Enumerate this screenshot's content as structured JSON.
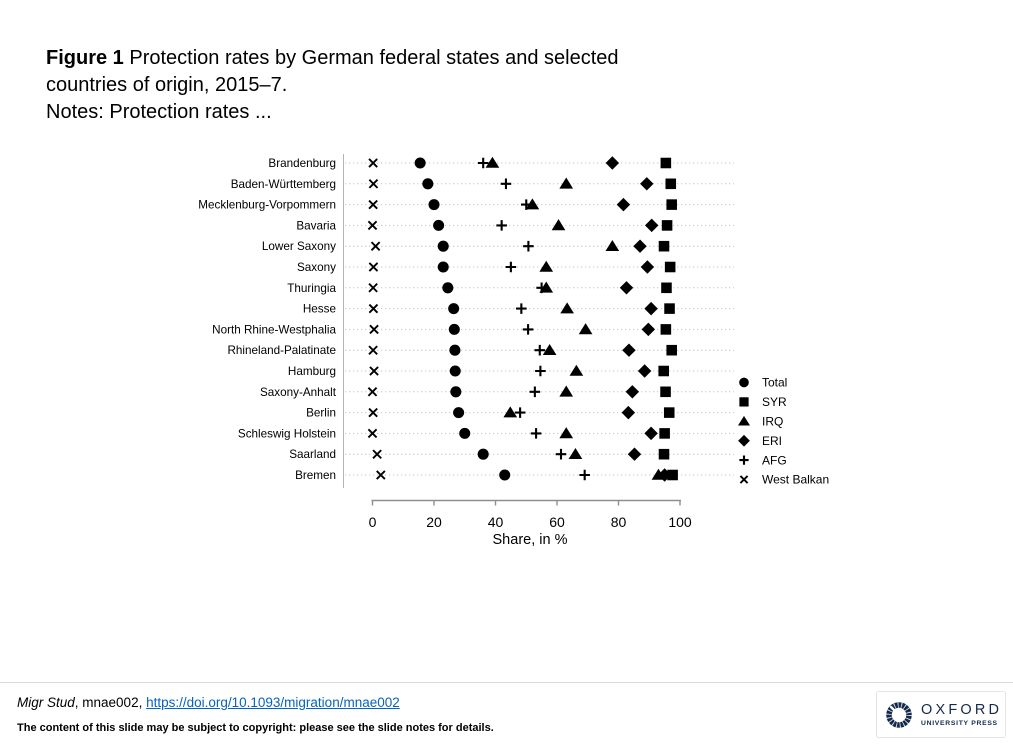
{
  "title": {
    "figure_label": "Figure 1",
    "line1": " Protection rates by German federal states and selected",
    "line2": "countries of origin, 2015–7.",
    "notes": "Notes: Protection rates ..."
  },
  "chart_data": {
    "type": "scatter",
    "variant": "horizontal-dot-plot",
    "title": "",
    "xlabel": "Share, in %",
    "ylabel": "",
    "xlim": [
      0,
      100
    ],
    "xticks": [
      0,
      20,
      40,
      60,
      80,
      100
    ],
    "grid": "dotted-horizontal-row-lines",
    "legend_position": "right",
    "marker_color": "#000000",
    "categories": [
      "Brandenburg",
      "Baden-Württemberg",
      "Mecklenburg-Vorpommern",
      "Bavaria",
      "Lower Saxony",
      "Saxony",
      "Thuringia",
      "Hesse",
      "North Rhine-Westphalia",
      "Rhineland-Palatinate",
      "Hamburg",
      "Saxony-Anhalt",
      "Berlin",
      "Schleswig Holstein",
      "Saarland",
      "Bremen"
    ],
    "series": [
      {
        "name": "Total",
        "marker": "circle",
        "values": [
          15.5,
          18,
          20,
          21.5,
          23,
          23,
          24.5,
          26.4,
          26.6,
          26.8,
          26.9,
          27.1,
          28,
          30,
          36,
          43
        ]
      },
      {
        "name": "SYR",
        "marker": "square",
        "values": [
          95.4,
          97,
          97.3,
          95.8,
          94.8,
          96.8,
          95.6,
          96.6,
          95.4,
          97.3,
          94.7,
          95.3,
          96.5,
          95,
          94.8,
          97.6
        ]
      },
      {
        "name": "IRQ",
        "marker": "triangle",
        "values": [
          39,
          63,
          52,
          60.5,
          78,
          56.5,
          56.5,
          63.3,
          69.3,
          57.6,
          66.3,
          63,
          44.8,
          63,
          66,
          93
        ]
      },
      {
        "name": "ERI",
        "marker": "diamond",
        "values": [
          78,
          89.2,
          81.6,
          90.8,
          87,
          89.4,
          82.6,
          90.6,
          89.7,
          83.4,
          88.5,
          84.5,
          83.2,
          90.6,
          85.2,
          95
        ]
      },
      {
        "name": "AFG",
        "marker": "plus",
        "values": [
          36,
          43.4,
          50,
          42,
          50.7,
          45,
          55,
          48.4,
          50.6,
          54.4,
          54.6,
          52.8,
          48,
          53.2,
          61.3,
          69
        ]
      },
      {
        "name": "West Balkan",
        "marker": "cross",
        "values": [
          0.2,
          0.3,
          0.2,
          0,
          1,
          0.3,
          0.2,
          0.3,
          0.5,
          0.2,
          0.5,
          0,
          0.2,
          0,
          1.5,
          2.7
        ]
      }
    ]
  },
  "footer": {
    "journal": "Migr Stud",
    "article_info": ", mnae002, ",
    "doi_link": "https://doi.org/10.1093/migration/mnae002",
    "copyright_note": "The content of this slide may be subject to copyright: please see the slide notes for details."
  },
  "logo": {
    "title": "OXFORD",
    "subtitle": "UNIVERSITY PRESS"
  },
  "colors": {
    "marker": "#000000",
    "grid_dotted": "#c6c6c6",
    "plot_border": "#b5b5b5",
    "axis": "#8f8f8f",
    "text": "#000000",
    "link": "#0563C1",
    "logo_navy": "#13294B",
    "divider": "#d9d9d9"
  }
}
